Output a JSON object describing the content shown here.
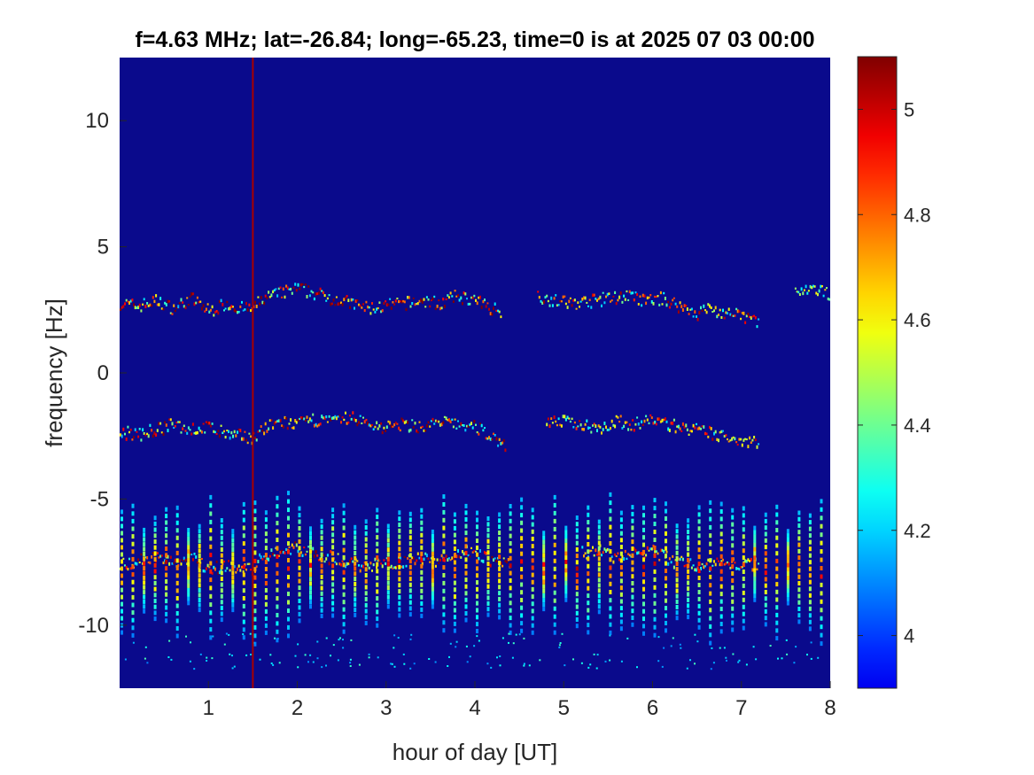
{
  "chart_data": {
    "type": "heatmap",
    "title": "f=4.63 MHz;  lat=-26.84; long=-65.23, time=0 is at 2025 07 03 00:00",
    "xlabel": "hour of day [UT]",
    "ylabel": "frequency [Hz]",
    "xlim": [
      0,
      8
    ],
    "ylim": [
      -12.5,
      12.5
    ],
    "xticks": [
      1,
      2,
      3,
      4,
      5,
      6,
      7,
      8
    ],
    "xtick_labels": [
      "1",
      "2",
      "3",
      "4",
      "5",
      "6",
      "7",
      "8"
    ],
    "yticks": [
      10,
      5,
      0,
      -5,
      -10
    ],
    "ytick_labels": [
      "10",
      "5",
      "0",
      "-5",
      "-10"
    ],
    "colormap": "jet",
    "clim": [
      3.9,
      5.1
    ],
    "colorbar_ticks": [
      5,
      4.8,
      4.6,
      4.4,
      4.2,
      4
    ],
    "colorbar_tick_labels": [
      "5",
      "4.8",
      "4.6",
      "4.4",
      "4.2",
      "4"
    ],
    "background_value": 3.9,
    "background_color": "#0a0a8c",
    "vertical_marker": {
      "x": 1.5,
      "color": "#a80000"
    },
    "traces": [
      {
        "points": [
          [
            0,
            2.8
          ],
          [
            0.2,
            2.7
          ],
          [
            0.4,
            2.9
          ],
          [
            0.6,
            2.6
          ],
          [
            0.8,
            3.0
          ],
          [
            1.0,
            2.5
          ],
          [
            1.2,
            2.8
          ],
          [
            1.35,
            2.6
          ],
          [
            1.5,
            2.6
          ],
          [
            1.6,
            3.0
          ],
          [
            1.8,
            3.2
          ],
          [
            2.0,
            3.4
          ],
          [
            2.2,
            3.2
          ],
          [
            2.4,
            3.0
          ],
          [
            2.6,
            2.8
          ],
          [
            2.8,
            2.6
          ],
          [
            3.0,
            2.7
          ],
          [
            3.2,
            2.8
          ],
          [
            3.4,
            2.9
          ],
          [
            3.6,
            2.8
          ],
          [
            3.8,
            3.1
          ],
          [
            4.0,
            2.9
          ],
          [
            4.2,
            2.6
          ],
          [
            4.3,
            2.5
          ]
        ],
        "strength": 0.8
      },
      {
        "points": [
          [
            4.7,
            3.1
          ],
          [
            4.9,
            2.9
          ],
          [
            5.1,
            2.8
          ],
          [
            5.3,
            2.9
          ],
          [
            5.5,
            3.0
          ],
          [
            5.7,
            3.1
          ],
          [
            5.9,
            2.9
          ],
          [
            6.1,
            3.0
          ],
          [
            6.3,
            2.7
          ],
          [
            6.5,
            2.4
          ],
          [
            6.6,
            2.6
          ],
          [
            6.8,
            2.4
          ],
          [
            7.0,
            2.3
          ],
          [
            7.2,
            2.1
          ]
        ],
        "strength": 0.6
      },
      {
        "points": [
          [
            7.6,
            3.2
          ],
          [
            7.8,
            3.3
          ],
          [
            8.0,
            3.2
          ]
        ],
        "strength": 0.2
      },
      {
        "points": [
          [
            0,
            -2.3
          ],
          [
            0.2,
            -2.4
          ],
          [
            0.4,
            -2.2
          ],
          [
            0.6,
            -2.0
          ],
          [
            0.8,
            -2.2
          ],
          [
            1.0,
            -2.1
          ],
          [
            1.2,
            -2.4
          ],
          [
            1.5,
            -2.5
          ],
          [
            1.6,
            -2.2
          ],
          [
            1.8,
            -1.9
          ],
          [
            2.0,
            -2.0
          ],
          [
            2.2,
            -1.8
          ],
          [
            2.4,
            -1.9
          ],
          [
            2.6,
            -1.7
          ],
          [
            2.8,
            -2.0
          ],
          [
            3.0,
            -2.1
          ],
          [
            3.2,
            -2.0
          ],
          [
            3.4,
            -2.1
          ],
          [
            3.6,
            -1.9
          ],
          [
            3.8,
            -2.0
          ],
          [
            4.0,
            -2.1
          ],
          [
            4.2,
            -2.5
          ],
          [
            4.35,
            -2.9
          ]
        ],
        "strength": 0.75
      },
      {
        "points": [
          [
            4.8,
            -1.8
          ],
          [
            5.0,
            -1.9
          ],
          [
            5.2,
            -2.0
          ],
          [
            5.4,
            -2.1
          ],
          [
            5.6,
            -1.9
          ],
          [
            5.8,
            -2.0
          ],
          [
            6.0,
            -1.8
          ],
          [
            6.2,
            -2.0
          ],
          [
            6.4,
            -2.2
          ],
          [
            6.6,
            -2.3
          ],
          [
            6.8,
            -2.5
          ],
          [
            7.0,
            -2.6
          ],
          [
            7.2,
            -2.7
          ]
        ],
        "strength": 0.55
      },
      {
        "points": [
          [
            0,
            -7.6
          ],
          [
            0.2,
            -7.4
          ],
          [
            0.4,
            -7.2
          ],
          [
            0.6,
            -7.5
          ],
          [
            0.8,
            -7.3
          ],
          [
            1.0,
            -7.7
          ],
          [
            1.2,
            -7.6
          ],
          [
            1.5,
            -7.8
          ],
          [
            1.6,
            -7.2
          ],
          [
            1.8,
            -7.0
          ],
          [
            2.0,
            -6.9
          ],
          [
            2.2,
            -7.1
          ],
          [
            2.4,
            -7.3
          ],
          [
            2.6,
            -7.5
          ],
          [
            2.8,
            -7.6
          ],
          [
            3.0,
            -7.5
          ],
          [
            3.2,
            -7.4
          ],
          [
            3.4,
            -7.3
          ],
          [
            3.6,
            -7.4
          ],
          [
            3.8,
            -7.1
          ],
          [
            4.0,
            -7.0
          ],
          [
            4.2,
            -7.5
          ],
          [
            4.4,
            -7.6
          ]
        ],
        "strength": 0.7
      },
      {
        "points": [
          [
            5.2,
            -7.1
          ],
          [
            5.4,
            -7.0
          ],
          [
            5.6,
            -7.3
          ],
          [
            5.8,
            -7.1
          ],
          [
            6.0,
            -7.0
          ],
          [
            6.2,
            -7.4
          ],
          [
            6.4,
            -7.5
          ],
          [
            6.6,
            -7.6
          ],
          [
            6.8,
            -7.4
          ],
          [
            7.0,
            -7.6
          ],
          [
            7.2,
            -7.5
          ]
        ],
        "strength": 0.5
      }
    ]
  }
}
